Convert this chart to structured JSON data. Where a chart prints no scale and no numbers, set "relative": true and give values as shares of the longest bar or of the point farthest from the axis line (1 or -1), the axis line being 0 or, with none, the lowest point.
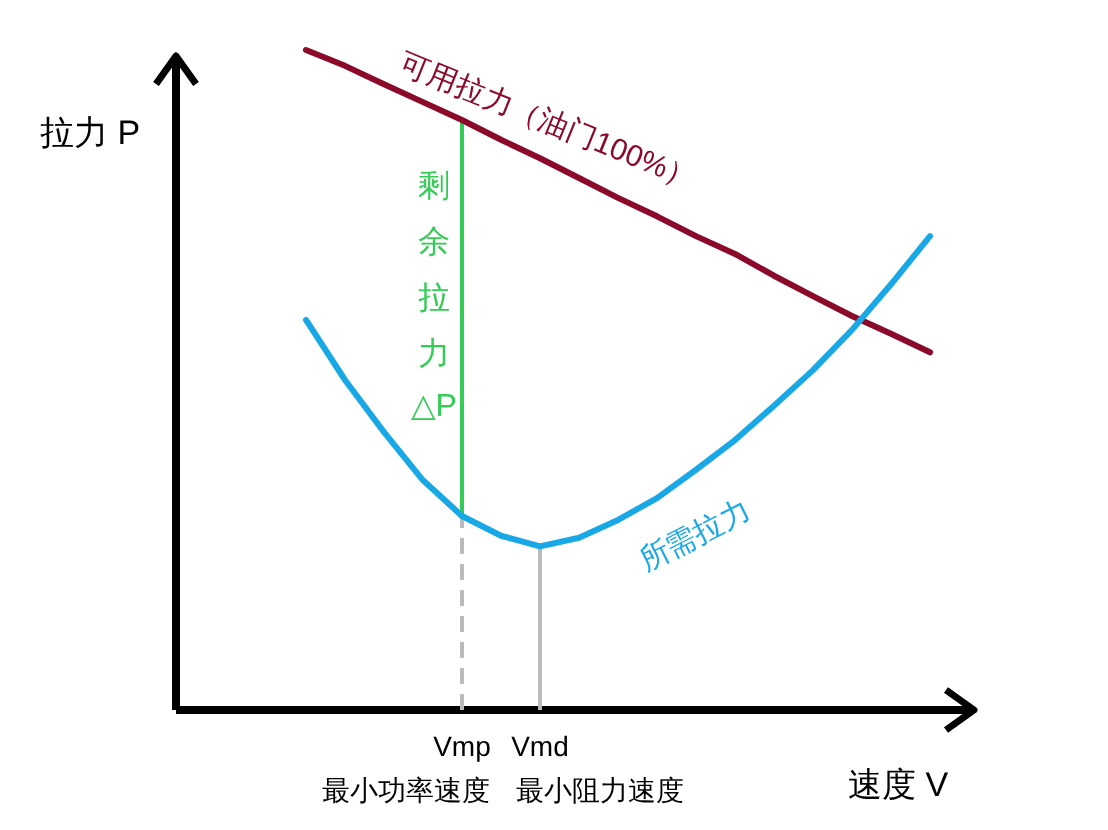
{
  "chart_data": {
    "type": "line",
    "relative": true,
    "xlabel": "速度 V",
    "ylabel": "拉力 P",
    "categories": [
      null,
      null,
      null,
      null,
      "Vmp",
      null,
      "Vmd",
      null,
      null,
      null,
      null,
      null,
      null,
      null,
      null,
      null,
      null
    ],
    "series": [
      {
        "name": "可用拉力（油门100%）",
        "color": "#8b0a2a",
        "values": [
          1.0,
          0.976,
          0.948,
          0.921,
          0.894,
          0.864,
          0.836,
          0.806,
          0.776,
          0.748,
          0.718,
          0.691,
          0.658,
          0.627,
          0.597,
          0.57,
          0.542
        ]
      },
      {
        "name": "所需拉力",
        "color": "#19a8e6",
        "values": [
          0.591,
          0.5,
          0.421,
          0.348,
          0.294,
          0.264,
          0.248,
          0.261,
          0.288,
          0.321,
          0.364,
          0.409,
          0.461,
          0.515,
          0.576,
          0.645,
          0.718
        ]
      }
    ],
    "ref_lines": [
      {
        "axis": "x",
        "value": "Vmp",
        "label": "剩余拉力 △P",
        "color": "#33cc55",
        "line_style": "solid"
      },
      {
        "axis": "x",
        "value": "Vmp",
        "color": "#bbbbbb",
        "line_style": "dashed"
      },
      {
        "axis": "x",
        "value": "Vmd",
        "color": "#bbbbbb",
        "line_style": "solid"
      }
    ],
    "annotations": [
      "最小功率速度",
      "最小阻力速度"
    ],
    "marker": "none",
    "line_style": "solid"
  }
}
